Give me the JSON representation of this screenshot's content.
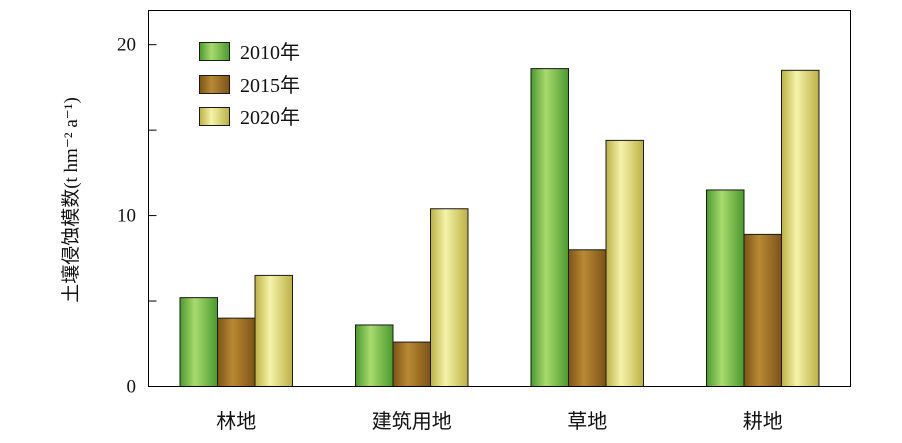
{
  "chart_data": {
    "type": "bar",
    "categories": [
      "林地",
      "建筑用地",
      "草地",
      "耕地"
    ],
    "series": [
      {
        "name": "2010年",
        "values": [
          5.2,
          3.6,
          18.6,
          11.5
        ],
        "color_light": "#a9da6e",
        "color_dark": "#4a9a2e"
      },
      {
        "name": "2015年",
        "values": [
          4.0,
          2.6,
          8.0,
          8.9
        ],
        "color_light": "#b98a34",
        "color_dark": "#7d5217"
      },
      {
        "name": "2020年",
        "values": [
          6.5,
          10.4,
          14.4,
          18.5
        ],
        "color_light": "#f4f3aa",
        "color_dark": "#bdb043"
      }
    ],
    "ylabel": "土壤侵蚀模数(t hm⁻² a⁻¹)",
    "ylim": [
      0,
      22
    ],
    "yticks": [
      0,
      10,
      20
    ],
    "yminor_ticks": [
      5,
      15
    ],
    "legend": "top-left",
    "grid": false
  }
}
